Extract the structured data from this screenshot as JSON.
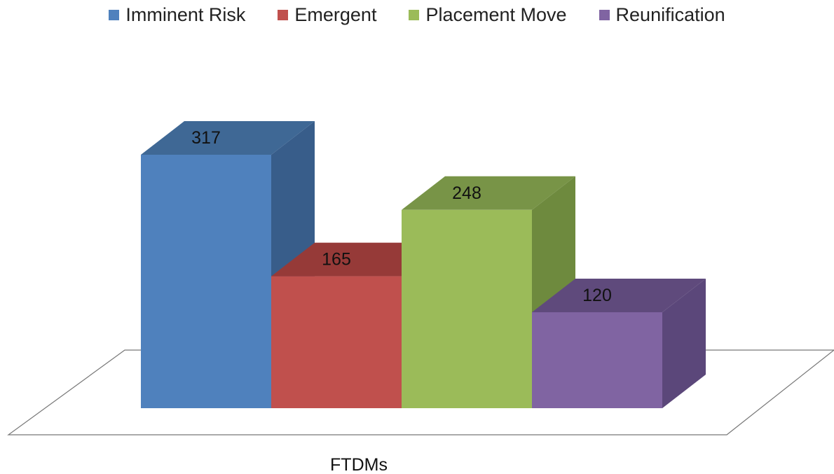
{
  "chart_data": {
    "type": "bar",
    "style": "3d-clustered-column",
    "categories": [
      "FTDMs"
    ],
    "xlabel": "FTDMs",
    "ylabel": "",
    "ylim": [
      0,
      350
    ],
    "grid": false,
    "legend_position": "top",
    "series": [
      {
        "name": "Imminent Risk",
        "values": [
          317
        ],
        "color": "#4F81BD",
        "top_color": "#3F6895",
        "side_color": "#385D8A"
      },
      {
        "name": "Emergent",
        "values": [
          165
        ],
        "color": "#C0504D",
        "top_color": "#963A38",
        "side_color": "#8E3B39"
      },
      {
        "name": "Placement Move",
        "values": [
          248
        ],
        "color": "#9BBB59",
        "top_color": "#789447",
        "side_color": "#6E8A3E"
      },
      {
        "name": "Reunification",
        "values": [
          120
        ],
        "color": "#8064A2",
        "top_color": "#5F4A7C",
        "side_color": "#5B477A"
      }
    ]
  }
}
